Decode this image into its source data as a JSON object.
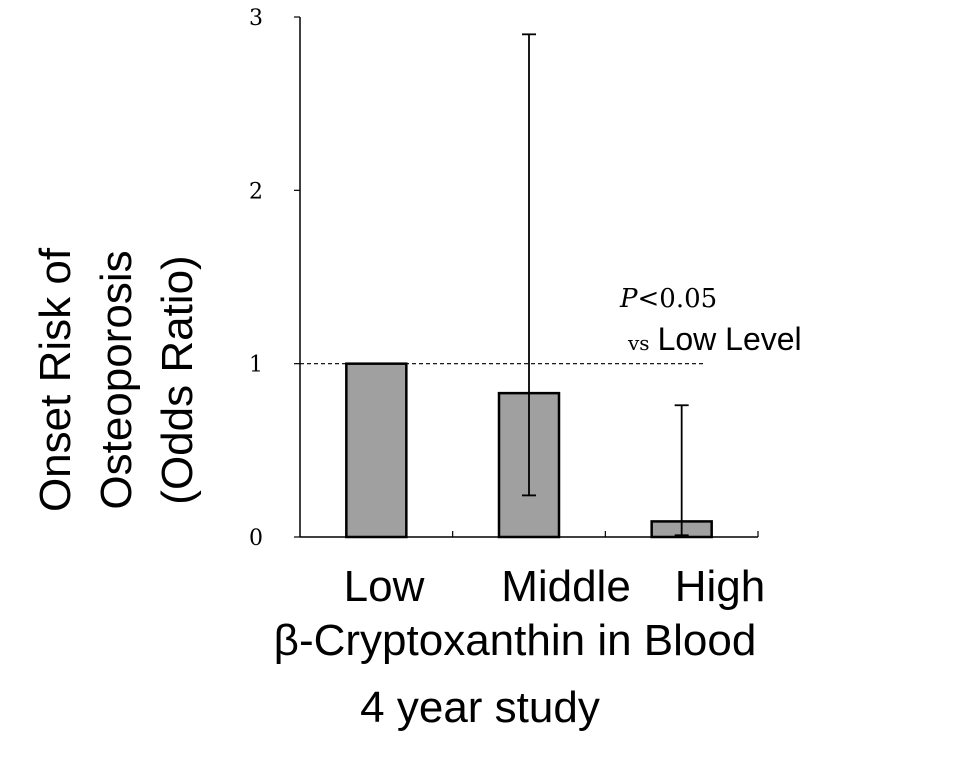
{
  "chart_data": {
    "type": "bar",
    "categories": [
      "Low",
      "Middle",
      "High"
    ],
    "values": [
      1.0,
      0.83,
      0.09
    ],
    "error_low": [
      null,
      0.24,
      0.01
    ],
    "error_high": [
      null,
      2.9,
      0.76
    ],
    "ylim": [
      0,
      3
    ],
    "yticks": [
      "0",
      "1",
      "2",
      "3"
    ],
    "ylabel": [
      "Onset Risk of",
      "Osteoporosis",
      "(Odds Ratio)"
    ],
    "xlabel": [
      "β-Cryptoxanthin in Blood",
      "4 year study"
    ],
    "reference_line": 1,
    "annotation": {
      "p_symbol": "P",
      "p_value": "<0.05",
      "vs_prefix": "vs",
      "vs_label": "Low Level"
    },
    "bar_color": "#a0a0a0",
    "grid": false
  }
}
